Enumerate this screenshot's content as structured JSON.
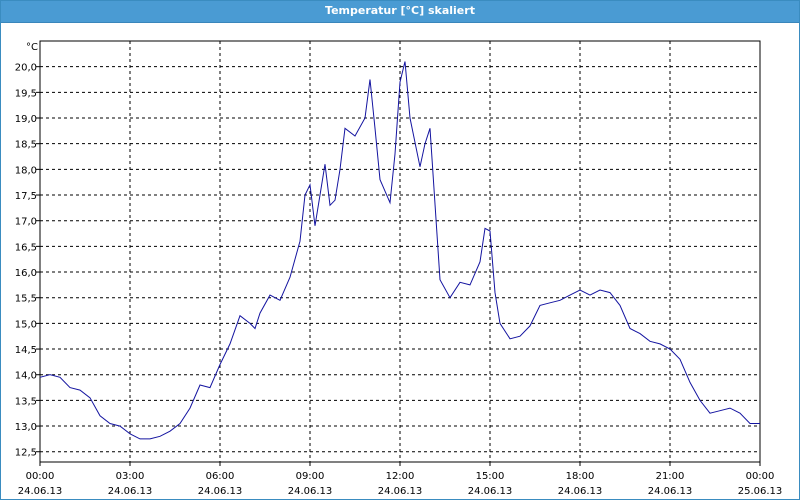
{
  "window": {
    "title": "Temperatur [°C] skaliert"
  },
  "chart_data": {
    "type": "line",
    "title": "Temperatur [°C] skaliert",
    "ylabel": "°C",
    "xlabel": "",
    "ylim": [
      12.3,
      20.5
    ],
    "xlim": [
      "2013-06-24 00:00",
      "2013-06-25 00:00"
    ],
    "grid": true,
    "line_color": "#1414a0",
    "y_ticks": [
      "12,5",
      "13,0",
      "13,5",
      "14,0",
      "14,5",
      "15,0",
      "15,5",
      "16,0",
      "16,5",
      "17,0",
      "17,5",
      "18,0",
      "18,5",
      "19,0",
      "19,5",
      "20,0"
    ],
    "x_ticks": [
      {
        "time": "00:00",
        "date": "24.06.13"
      },
      {
        "time": "03:00",
        "date": "24.06.13"
      },
      {
        "time": "06:00",
        "date": "24.06.13"
      },
      {
        "time": "09:00",
        "date": "24.06.13"
      },
      {
        "time": "12:00",
        "date": "24.06.13"
      },
      {
        "time": "15:00",
        "date": "24.06.13"
      },
      {
        "time": "18:00",
        "date": "24.06.13"
      },
      {
        "time": "21:00",
        "date": "24.06.13"
      },
      {
        "time": "00:00",
        "date": "25.06.13"
      }
    ],
    "series": [
      {
        "x": [
          "24.06.13 00:00",
          "24.06.13 00:20",
          "24.06.13 00:40",
          "24.06.13 01:00",
          "24.06.13 01:20",
          "24.06.13 01:40",
          "24.06.13 02:00",
          "24.06.13 02:20",
          "24.06.13 02:40",
          "24.06.13 03:00",
          "24.06.13 03:20",
          "24.06.13 03:40",
          "24.06.13 04:00",
          "24.06.13 04:20",
          "24.06.13 04:40",
          "24.06.13 05:00",
          "24.06.13 05:20",
          "24.06.13 05:40",
          "24.06.13 06:00",
          "24.06.13 06:20",
          "24.06.13 06:40",
          "24.06.13 07:00",
          "24.06.13 07:10",
          "24.06.13 07:20",
          "24.06.13 07:40",
          "24.06.13 08:00",
          "24.06.13 08:20",
          "24.06.13 08:40",
          "24.06.13 08:50",
          "24.06.13 09:00",
          "24.06.13 09:10",
          "24.06.13 09:20",
          "24.06.13 09:30",
          "24.06.13 09:40",
          "24.06.13 09:50",
          "24.06.13 10:00",
          "24.06.13 10:10",
          "24.06.13 10:30",
          "24.06.13 10:50",
          "24.06.13 11:00",
          "24.06.13 11:10",
          "24.06.13 11:20",
          "24.06.13 11:40",
          "24.06.13 11:50",
          "24.06.13 12:00",
          "24.06.13 12:10",
          "24.06.13 12:20",
          "24.06.13 12:40",
          "24.06.13 12:50",
          "24.06.13 13:00",
          "24.06.13 13:20",
          "24.06.13 13:40",
          "24.06.13 14:00",
          "24.06.13 14:20",
          "24.06.13 14:40",
          "24.06.13 14:50",
          "24.06.13 15:00",
          "24.06.13 15:10",
          "24.06.13 15:20",
          "24.06.13 15:40",
          "24.06.13 16:00",
          "24.06.13 16:20",
          "24.06.13 16:40",
          "24.06.13 17:00",
          "24.06.13 17:20",
          "24.06.13 17:40",
          "24.06.13 18:00",
          "24.06.13 18:20",
          "24.06.13 18:40",
          "24.06.13 19:00",
          "24.06.13 19:20",
          "24.06.13 19:40",
          "24.06.13 20:00",
          "24.06.13 20:20",
          "24.06.13 20:40",
          "24.06.13 21:00",
          "24.06.13 21:20",
          "24.06.13 21:40",
          "24.06.13 22:00",
          "24.06.13 22:20",
          "24.06.13 22:40",
          "24.06.13 23:00",
          "24.06.13 23:20",
          "24.06.13 23:40",
          "25.06.13 00:00"
        ],
        "values": [
          13.95,
          14.0,
          13.95,
          13.75,
          13.7,
          13.55,
          13.2,
          13.05,
          13.0,
          12.85,
          12.75,
          12.75,
          12.8,
          12.9,
          13.05,
          13.35,
          13.8,
          13.75,
          14.2,
          14.6,
          15.15,
          15.0,
          14.9,
          15.2,
          15.55,
          15.45,
          15.9,
          16.6,
          17.5,
          17.7,
          16.9,
          17.5,
          18.1,
          17.3,
          17.4,
          18.0,
          18.8,
          18.65,
          19.0,
          19.75,
          18.8,
          17.8,
          17.35,
          18.3,
          19.7,
          20.1,
          19.0,
          18.05,
          18.5,
          18.8,
          15.85,
          15.5,
          15.8,
          15.75,
          16.2,
          16.85,
          16.8,
          15.6,
          15.0,
          14.7,
          14.75,
          14.95,
          15.35,
          15.4,
          15.45,
          15.55,
          15.65,
          15.55,
          15.65,
          15.6,
          15.35,
          14.9,
          14.8,
          14.65,
          14.6,
          14.5,
          14.3,
          13.85,
          13.5,
          13.25,
          13.3,
          13.35,
          13.25,
          13.05,
          13.05
        ]
      }
    ]
  }
}
